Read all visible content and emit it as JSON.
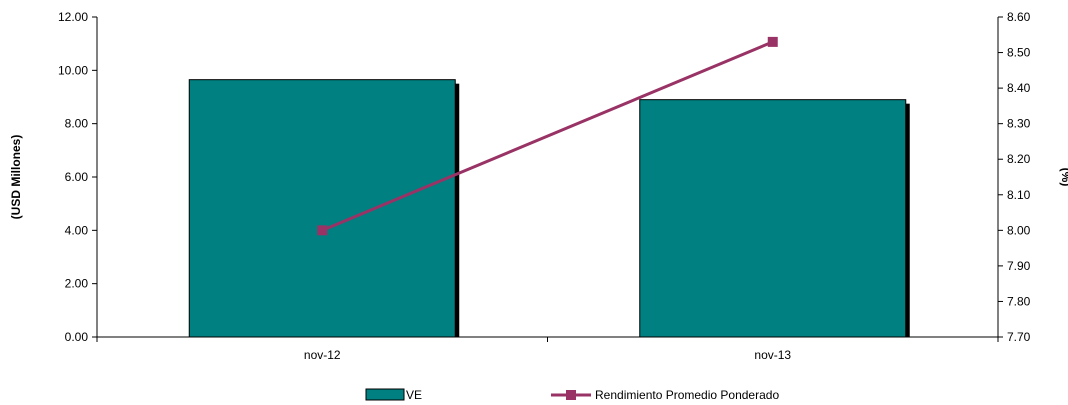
{
  "chart_data": {
    "type": "bar+line",
    "categories": [
      "nov-12",
      "nov-13"
    ],
    "series": [
      {
        "name": "VE",
        "type": "bar",
        "axis": "left",
        "values": [
          9.65,
          8.9
        ],
        "color": "#008080"
      },
      {
        "name": "Rendimiento Promedio Ponderado",
        "type": "line",
        "axis": "right",
        "values": [
          8.0,
          8.53
        ],
        "color": "#993366"
      }
    ],
    "ylabel": "(USD Millones)",
    "y2label": "(%)",
    "ylim": [
      0,
      12
    ],
    "y2lim": [
      7.7,
      8.6
    ],
    "yticks": [
      "0.00",
      "2.00",
      "4.00",
      "6.00",
      "8.00",
      "10.00",
      "12.00"
    ],
    "y2ticks": [
      "7.70",
      "7.80",
      "7.90",
      "8.00",
      "8.10",
      "8.20",
      "8.30",
      "8.40",
      "8.50",
      "8.60"
    ],
    "grid": false,
    "legend": "bottom"
  }
}
